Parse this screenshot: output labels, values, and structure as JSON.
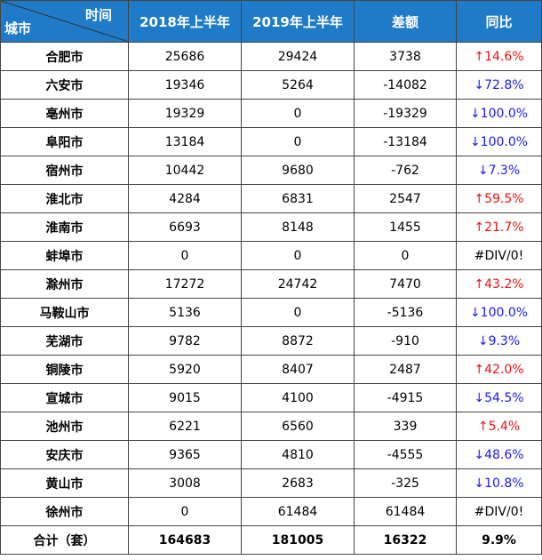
{
  "header": {
    "corner_top": "时间",
    "corner_bottom": "城市",
    "col_2018": "2018年上半年",
    "col_2019": "2019年上半年",
    "col_diff": "差额",
    "col_yoy": "同比"
  },
  "rows": [
    {
      "city": "合肥市",
      "v2018": "25686",
      "v2019": "29424",
      "diff": "3738",
      "yoy": "↑14.6%",
      "trend": "up"
    },
    {
      "city": "六安市",
      "v2018": "19346",
      "v2019": "5264",
      "diff": "-14082",
      "yoy": "↓72.8%",
      "trend": "down"
    },
    {
      "city": "亳州市",
      "v2018": "19329",
      "v2019": "0",
      "diff": "-19329",
      "yoy": "↓100.0%",
      "trend": "down"
    },
    {
      "city": "阜阳市",
      "v2018": "13184",
      "v2019": "0",
      "diff": "-13184",
      "yoy": "↓100.0%",
      "trend": "down"
    },
    {
      "city": "宿州市",
      "v2018": "10442",
      "v2019": "9680",
      "diff": "-762",
      "yoy": "↓7.3%",
      "trend": "down"
    },
    {
      "city": "淮北市",
      "v2018": "4284",
      "v2019": "6831",
      "diff": "2547",
      "yoy": "↑59.5%",
      "trend": "up"
    },
    {
      "city": "淮南市",
      "v2018": "6693",
      "v2019": "8148",
      "diff": "1455",
      "yoy": "↑21.7%",
      "trend": "up"
    },
    {
      "city": "蚌埠市",
      "v2018": "0",
      "v2019": "0",
      "diff": "0",
      "yoy": "#DIV/0!",
      "trend": "neutral"
    },
    {
      "city": "滁州市",
      "v2018": "17272",
      "v2019": "24742",
      "diff": "7470",
      "yoy": "↑43.2%",
      "trend": "up"
    },
    {
      "city": "马鞍山市",
      "v2018": "5136",
      "v2019": "0",
      "diff": "-5136",
      "yoy": "↓100.0%",
      "trend": "down"
    },
    {
      "city": "芜湖市",
      "v2018": "9782",
      "v2019": "8872",
      "diff": "-910",
      "yoy": "↓9.3%",
      "trend": "down"
    },
    {
      "city": "铜陵市",
      "v2018": "5920",
      "v2019": "8407",
      "diff": "2487",
      "yoy": "↑42.0%",
      "trend": "up"
    },
    {
      "city": "宣城市",
      "v2018": "9015",
      "v2019": "4100",
      "diff": "-4915",
      "yoy": "↓54.5%",
      "trend": "down"
    },
    {
      "city": "池州市",
      "v2018": "6221",
      "v2019": "6560",
      "diff": "339",
      "yoy": "↑5.4%",
      "trend": "up"
    },
    {
      "city": "安庆市",
      "v2018": "9365",
      "v2019": "4810",
      "diff": "-4555",
      "yoy": "↓48.6%",
      "trend": "down"
    },
    {
      "city": "黄山市",
      "v2018": "3008",
      "v2019": "2683",
      "diff": "-325",
      "yoy": "↓10.8%",
      "trend": "down"
    },
    {
      "city": "徐州市",
      "v2018": "0",
      "v2019": "61484",
      "diff": "61484",
      "yoy": "#DIV/0!",
      "trend": "neutral"
    }
  ],
  "total": {
    "label": "合计（套）",
    "v2018": "164683",
    "v2019": "181005",
    "diff": "16322",
    "yoy": "9.9%"
  },
  "colors": {
    "header_bg": "#1f7bc8",
    "up": "#ee1111",
    "down": "#1a1aee"
  }
}
